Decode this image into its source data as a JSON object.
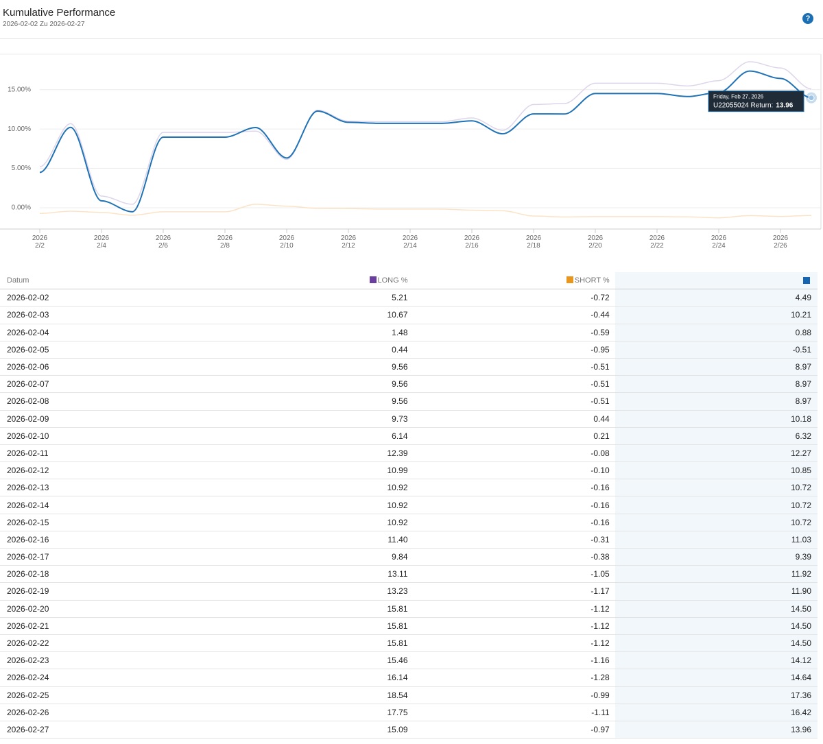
{
  "header": {
    "title": "Kumulative Performance",
    "subtitle": "2026-02-02 Zu 2026-02-27",
    "help": "?"
  },
  "chart_data": {
    "type": "line",
    "x": [
      "2026-02-02",
      "2026-02-03",
      "2026-02-04",
      "2026-02-05",
      "2026-02-06",
      "2026-02-07",
      "2026-02-08",
      "2026-02-09",
      "2026-02-10",
      "2026-02-11",
      "2026-02-12",
      "2026-02-13",
      "2026-02-14",
      "2026-02-15",
      "2026-02-16",
      "2026-02-17",
      "2026-02-18",
      "2026-02-19",
      "2026-02-20",
      "2026-02-21",
      "2026-02-22",
      "2026-02-23",
      "2026-02-24",
      "2026-02-25",
      "2026-02-26",
      "2026-02-27"
    ],
    "series": [
      {
        "name": "LONG %",
        "color": "#6b3fa0",
        "line_color": "#ddd5ea",
        "values": [
          5.21,
          10.67,
          1.48,
          0.44,
          9.56,
          9.56,
          9.56,
          9.73,
          6.14,
          12.39,
          10.99,
          10.92,
          10.92,
          10.92,
          11.4,
          9.84,
          13.11,
          13.23,
          15.81,
          15.81,
          15.81,
          15.46,
          16.14,
          18.54,
          17.75,
          15.09
        ],
        "value_labels": [
          "5.21",
          "10.67",
          "1.48",
          "0.44",
          "9.56",
          "9.56",
          "9.56",
          "9.73",
          "6.14",
          "12.39",
          "10.99",
          "10.92",
          "10.92",
          "10.92",
          "11.40",
          "9.84",
          "13.11",
          "13.23",
          "15.81",
          "15.81",
          "15.81",
          "15.46",
          "16.14",
          "18.54",
          "17.75",
          "15.09"
        ]
      },
      {
        "name": "SHORT %",
        "color": "#e8961e",
        "line_color": "#fbe3c6",
        "values": [
          -0.72,
          -0.44,
          -0.59,
          -0.95,
          -0.51,
          -0.51,
          -0.51,
          0.44,
          0.21,
          -0.08,
          -0.1,
          -0.16,
          -0.16,
          -0.16,
          -0.31,
          -0.38,
          -1.05,
          -1.17,
          -1.12,
          -1.12,
          -1.12,
          -1.16,
          -1.28,
          -0.99,
          -1.11,
          -0.97
        ],
        "value_labels": [
          "-0.72",
          "-0.44",
          "-0.59",
          "-0.95",
          "-0.51",
          "-0.51",
          "-0.51",
          "0.44",
          "0.21",
          "-0.08",
          "-0.10",
          "-0.16",
          "-0.16",
          "-0.16",
          "-0.31",
          "-0.38",
          "-1.05",
          "-1.17",
          "-1.12",
          "-1.12",
          "-1.12",
          "-1.16",
          "-1.28",
          "-0.99",
          "-1.11",
          "-0.97"
        ]
      },
      {
        "color": "#1565b0",
        "line_color": "#1f72b5",
        "values": [
          4.49,
          10.21,
          0.88,
          -0.51,
          8.97,
          8.97,
          8.97,
          10.18,
          6.32,
          12.27,
          10.85,
          10.72,
          10.72,
          10.72,
          11.03,
          9.39,
          11.92,
          11.9,
          14.5,
          14.5,
          14.5,
          14.12,
          14.64,
          17.36,
          16.42,
          13.96
        ],
        "value_labels": [
          "4.49",
          "10.21",
          "0.88",
          "-0.51",
          "8.97",
          "8.97",
          "8.97",
          "10.18",
          "6.32",
          "12.27",
          "10.85",
          "10.72",
          "10.72",
          "10.72",
          "11.03",
          "9.39",
          "11.92",
          "11.90",
          "14.50",
          "14.50",
          "14.50",
          "14.12",
          "14.64",
          "17.36",
          "16.42",
          "13.96"
        ]
      }
    ],
    "xlim": [
      "2026-02-02",
      "2026-02-27"
    ],
    "xticks": [
      {
        "value": "2026-02-02",
        "label": "2026\n2/2"
      },
      {
        "value": "2026-02-04",
        "label": "2026\n2/4"
      },
      {
        "value": "2026-02-06",
        "label": "2026\n2/6"
      },
      {
        "value": "2026-02-08",
        "label": "2026\n2/8"
      },
      {
        "value": "2026-02-10",
        "label": "2026\n2/10"
      },
      {
        "value": "2026-02-12",
        "label": "2026\n2/12"
      },
      {
        "value": "2026-02-14",
        "label": "2026\n2/14"
      },
      {
        "value": "2026-02-16",
        "label": "2026\n2/16"
      },
      {
        "value": "2026-02-18",
        "label": "2026\n2/18"
      },
      {
        "value": "2026-02-20",
        "label": "2026\n2/20"
      },
      {
        "value": "2026-02-22",
        "label": "2026\n2/22"
      },
      {
        "value": "2026-02-24",
        "label": "2026\n2/24"
      },
      {
        "value": "2026-02-26",
        "label": "2026\n2/26"
      }
    ],
    "ylim": [
      -2.7,
      19.5
    ],
    "yticks": [
      {
        "value": 0,
        "label": "0.00%"
      },
      {
        "value": 5,
        "label": "5.00%"
      },
      {
        "value": 10,
        "label": "10.00%"
      },
      {
        "value": 15,
        "label": "15.00%"
      }
    ],
    "grid": true
  },
  "tooltip": {
    "date": "Friday, Feb 27, 2026",
    "label": "U22055024 Return:"
  },
  "table": {
    "columns": [
      "Datum"
    ]
  }
}
